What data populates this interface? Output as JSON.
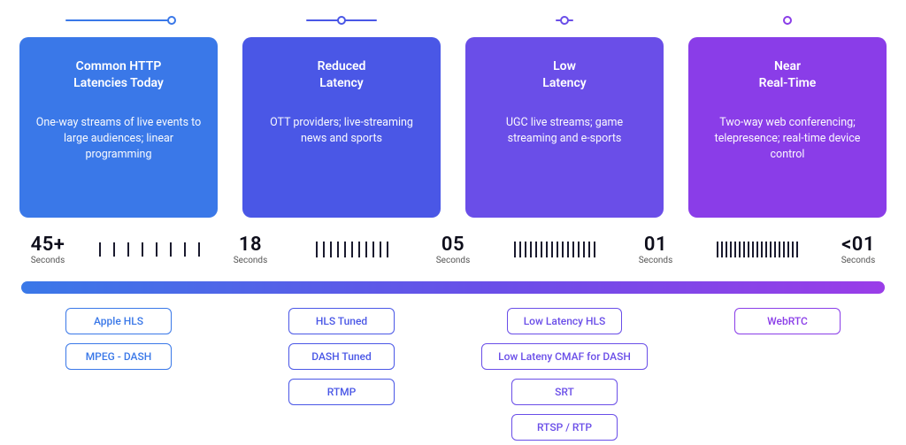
{
  "columns": [
    {
      "color": "#3a78e8",
      "slider": {
        "line_width": 120,
        "knob_left_pct": 100
      },
      "title": "Common HTTP\nLatencies Today",
      "desc": "One-way streams of live events to large audiences; linear programming",
      "ticks": {
        "count": 8,
        "height": 16,
        "gap": 14
      },
      "pills": [
        "Apple HLS",
        "MPEG - DASH"
      ]
    },
    {
      "color": "#4a57e6",
      "slider": {
        "line_width": 80,
        "knob_left_pct": 50
      },
      "title": "Reduced\nLatency",
      "desc": "OTT providers;\nlive-streaming news and sports",
      "ticks": {
        "count": 11,
        "height": 18,
        "gap": 6
      },
      "pills": [
        "HLS Tuned",
        "DASH Tuned",
        "RTMP"
      ]
    },
    {
      "color": "#6a4ee8",
      "slider": {
        "line_width": 20,
        "knob_left_pct": 50
      },
      "title": "Low\nLatency",
      "desc": "UGC live streams;\ngame streaming and\ne-sports",
      "ticks": {
        "count": 16,
        "height": 18,
        "gap": 4
      },
      "pills": [
        "Low Latency HLS",
        "Low Lateny CMAF for DASH",
        "SRT",
        "RTSP / RTP"
      ]
    },
    {
      "color": "#8a3de8",
      "slider": {
        "line_width": 0,
        "knob_left_pct": 50
      },
      "title": "Near\nReal-Time",
      "desc": "Two-way web conferencing; telepresence; real-time device control",
      "ticks": {
        "count": 19,
        "height": 18,
        "gap": 3
      },
      "pills": [
        "WebRTC"
      ]
    }
  ],
  "time_markers": [
    "45+",
    "18",
    "05",
    "01",
    "<01"
  ],
  "time_unit": "Seconds",
  "gradient": {
    "from": "#3a78e8",
    "mid": "#6a4ee8",
    "to": "#9a3de8"
  },
  "background": "#ffffff"
}
